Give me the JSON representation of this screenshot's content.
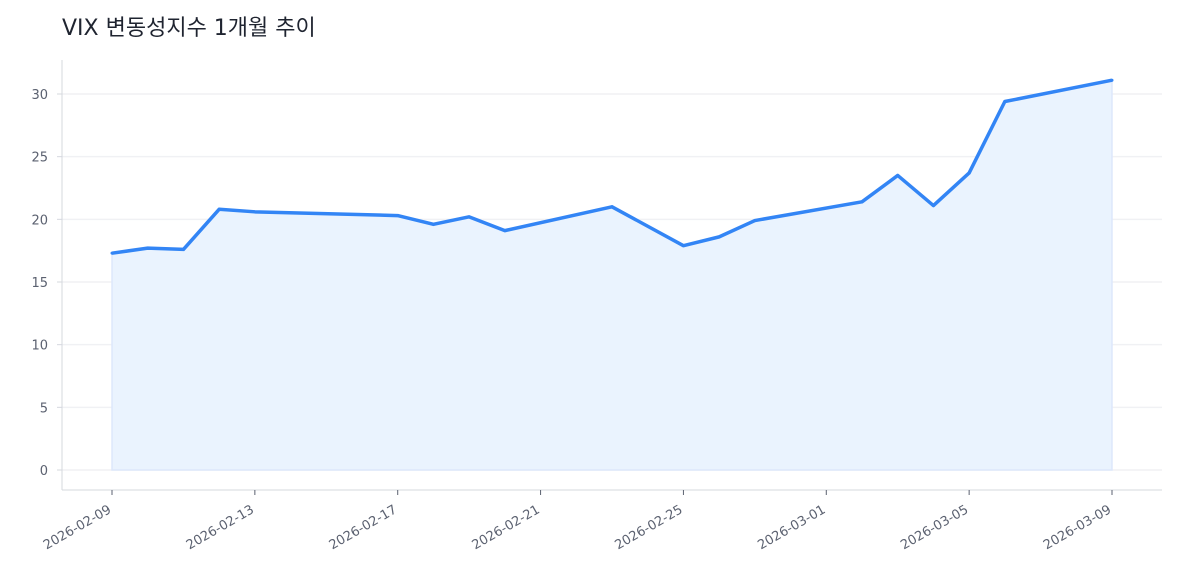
{
  "chart_data": {
    "type": "area",
    "title": "VIX 변동성지수 1개월 추이",
    "xlabel": "",
    "ylabel": "",
    "x": [
      "2026-02-09",
      "2026-02-10",
      "2026-02-11",
      "2026-02-12",
      "2026-02-13",
      "2026-02-17",
      "2026-02-18",
      "2026-02-19",
      "2026-02-20",
      "2026-02-23",
      "2026-02-25",
      "2026-02-26",
      "2026-02-27",
      "2026-03-02",
      "2026-03-03",
      "2026-03-04",
      "2026-03-05",
      "2026-03-06",
      "2026-03-09"
    ],
    "values": [
      17.3,
      17.7,
      17.6,
      20.8,
      20.6,
      20.3,
      19.6,
      20.2,
      19.1,
      21.0,
      17.9,
      18.6,
      19.9,
      21.4,
      23.5,
      21.1,
      23.7,
      29.4,
      31.1
    ],
    "ylim": [
      -1.5,
      32.8
    ],
    "yticks": [
      0,
      5,
      10,
      15,
      20,
      25,
      30
    ],
    "xticks": [
      "2026-02-09",
      "2026-02-13",
      "2026-02-17",
      "2026-02-21",
      "2026-02-25",
      "2026-03-01",
      "2026-03-05",
      "2026-03-09"
    ],
    "grid": "horizontal",
    "line_color": "#3385f5",
    "fill_color": "#eaf3fe"
  }
}
